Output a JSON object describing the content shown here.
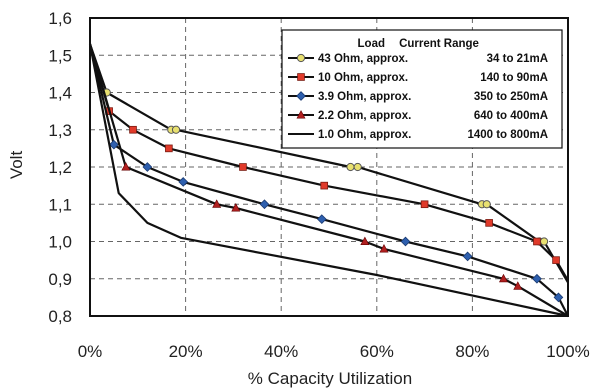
{
  "chart_data": {
    "type": "line",
    "xlabel": "% Capacity Utilization",
    "ylabel": "Volt",
    "xlim": [
      0,
      100
    ],
    "ylim": [
      0.8,
      1.6
    ],
    "x_ticks": [
      0,
      20,
      40,
      60,
      80,
      100
    ],
    "x_tick_labels": [
      "0%",
      "20%",
      "40%",
      "60%",
      "80%",
      "100%"
    ],
    "y_ticks": [
      0.8,
      0.9,
      1.0,
      1.1,
      1.2,
      1.3,
      1.4,
      1.5,
      1.6
    ],
    "y_tick_labels": [
      "0,8",
      "0,9",
      "1,0",
      "1,1",
      "1,2",
      "1,3",
      "1,4",
      "1,5",
      "1,6"
    ],
    "grid": true,
    "legend": {
      "position": "top-right",
      "header_load": "Load",
      "header_range": "Current Range"
    },
    "series": [
      {
        "name": "43 Ohm, approx. 34 to 21mA",
        "load": "43 Ohm, approx.",
        "range": "34 to 21mA",
        "color": "#e8e070",
        "marker": "circle",
        "x": [
          0,
          3.5,
          17,
          18,
          54.5,
          56,
          82,
          83,
          94,
          95,
          100
        ],
        "y": [
          1.53,
          1.4,
          1.3,
          1.3,
          1.2,
          1.2,
          1.1,
          1.1,
          1.0,
          1.0,
          0.89
        ]
      },
      {
        "name": "10 Ohm, approx. 140 to 90mA",
        "load": "10 Ohm, approx.",
        "range": "140 to 90mA",
        "color": "#e03a2a",
        "marker": "square",
        "x": [
          0,
          4,
          9,
          16.5,
          32,
          49,
          70,
          83.5,
          93.5,
          97.5,
          100
        ],
        "y": [
          1.53,
          1.35,
          1.3,
          1.25,
          1.2,
          1.15,
          1.1,
          1.05,
          1.0,
          0.95,
          0.895
        ]
      },
      {
        "name": "3.9 Ohm, approx. 350 to 250mA",
        "load": "3.9 Ohm, approx.",
        "range": "350 to 250mA",
        "color": "#2e5fae",
        "marker": "diamond",
        "x": [
          0,
          5,
          12,
          19.5,
          36.5,
          48.5,
          66,
          79,
          93.5,
          98,
          100
        ],
        "y": [
          1.53,
          1.26,
          1.2,
          1.16,
          1.1,
          1.06,
          1.0,
          0.96,
          0.9,
          0.85,
          0.8
        ]
      },
      {
        "name": "2.2 Ohm, approx. 640 to 400mA",
        "load": "2.2 Ohm, approx.",
        "range": "640 to 400mA",
        "color": "#b02020",
        "marker": "triangle",
        "x": [
          0,
          7.5,
          26.5,
          30.5,
          57.5,
          61.5,
          86.5,
          89.5,
          100
        ],
        "y": [
          1.53,
          1.2,
          1.1,
          1.09,
          1.0,
          0.98,
          0.9,
          0.88,
          0.8
        ]
      },
      {
        "name": "1.0 Ohm, approx. 1400 to 800mA",
        "load": "1.0 Ohm, approx.",
        "range": "1400 to 800mA",
        "color": "#111111",
        "marker": "none",
        "x": [
          0,
          6,
          12,
          19,
          60,
          100
        ],
        "y": [
          1.53,
          1.13,
          1.05,
          1.01,
          0.91,
          0.8
        ]
      }
    ]
  }
}
